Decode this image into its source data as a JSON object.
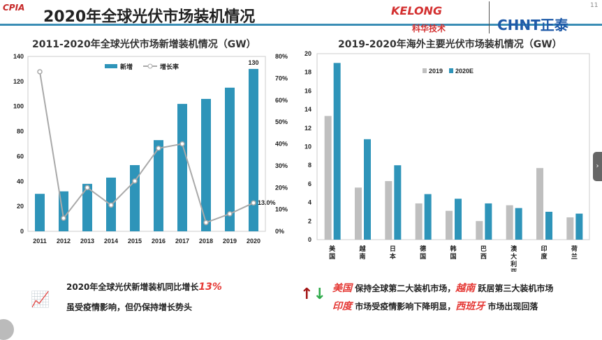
{
  "header": {
    "title": "2020年全球光伏市场装机情况",
    "logo_left": "CPIA",
    "logo_kelong": "KELONG",
    "logo_kelong_cn": "科华技术",
    "logo_chnt": "CHNT正泰",
    "page_number": "11"
  },
  "chart_data": [
    {
      "type": "bar",
      "title": "2011-2020年全球光伏市场新增装机情况（GW）",
      "categories": [
        "2011",
        "2012",
        "2013",
        "2014",
        "2015",
        "2016",
        "2017",
        "2018",
        "2019",
        "2020"
      ],
      "series": [
        {
          "name": "新增",
          "type": "bar",
          "axis": "left",
          "values": [
            30,
            32,
            38,
            43,
            53,
            73,
            102,
            106,
            115,
            130
          ]
        },
        {
          "name": "增长率",
          "type": "line",
          "axis": "right",
          "values": [
            73,
            6,
            20,
            12,
            23,
            38,
            40,
            4,
            8,
            13
          ]
        }
      ],
      "ylim": [
        0,
        140
      ],
      "yticks": [
        "0",
        "20",
        "40",
        "60",
        "80",
        "100",
        "120",
        "140"
      ],
      "y2lim": [
        0,
        80
      ],
      "y2ticks": [
        "0%",
        "10%",
        "20%",
        "30%",
        "40%",
        "50%",
        "60%",
        "70%",
        "80%"
      ],
      "data_labels": {
        "bar_last": "130",
        "line_last": "13.0%"
      },
      "legend": "top-center",
      "colors": {
        "bar": "#2e94b9",
        "line": "#a9a9a9"
      }
    },
    {
      "type": "bar",
      "title": "2019-2020年海外主要光伏市场装机情况（GW）",
      "categories": [
        "美国",
        "越南",
        "日本",
        "德国",
        "韩国",
        "巴西",
        "澳大利亚",
        "印度",
        "荷兰"
      ],
      "series": [
        {
          "name": "2019",
          "values": [
            13.3,
            5.6,
            6.3,
            3.9,
            3.1,
            2.0,
            3.7,
            7.7,
            2.4
          ]
        },
        {
          "name": "2020E",
          "values": [
            19,
            10.8,
            8,
            4.9,
            4.4,
            3.9,
            3.4,
            3.0,
            2.8
          ]
        }
      ],
      "ylim": [
        0,
        20
      ],
      "yticks": [
        "0",
        "2",
        "4",
        "6",
        "8",
        "10",
        "12",
        "14",
        "16",
        "18",
        "20"
      ],
      "legend": "top-center",
      "colors": {
        "2019": "#bfbfbf",
        "2020E": "#2e94b9"
      }
    }
  ],
  "notes": {
    "left_line1": "2020年全球光伏新增装机同比增长",
    "left_hl": "13%",
    "left_line2": "虽受疫情影响，但仍保持增长势头",
    "right_hl1": "美国",
    "right_t1": "保持全球第二大装机市场，",
    "right_hl2": "越南",
    "right_t2": "跃居第三大装机市场",
    "right_hl3": "印度",
    "right_t3": "市场受疫情影响下降明显，",
    "right_hl4": "西班牙",
    "right_t4": "市场出现回落"
  }
}
